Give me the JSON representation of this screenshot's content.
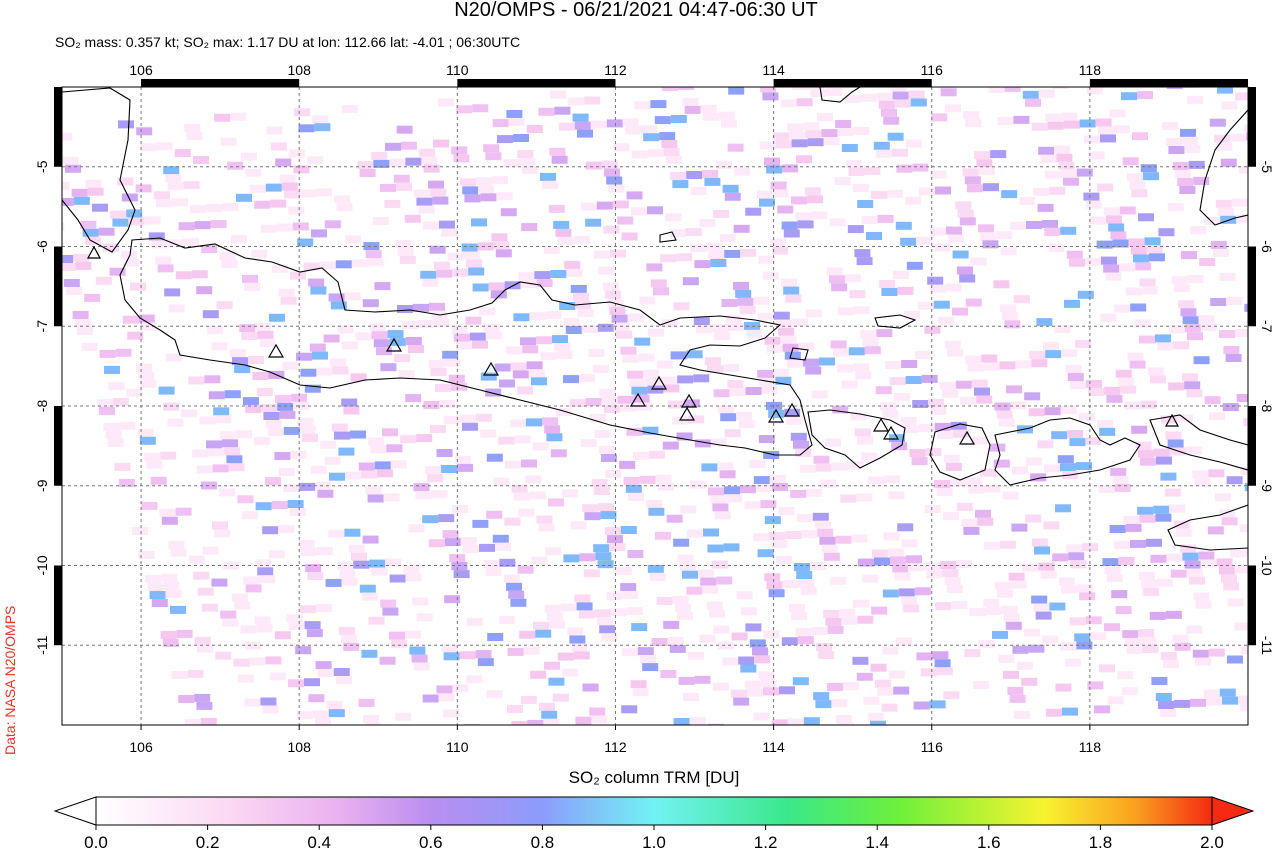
{
  "header": {
    "title": "N20/OMPS - 06/21/2021 04:47-06:30 UT",
    "subtitle": "SO₂ mass: 0.357 kt; SO₂ max: 1.17 DU at lon: 112.66 lat: -4.01 ; 06:30UTC"
  },
  "map": {
    "xlim": [
      105,
      120
    ],
    "ylim": [
      -12,
      -4
    ],
    "xticks": [
      106,
      108,
      110,
      112,
      114,
      116,
      118
    ],
    "yticks": [
      -5,
      -6,
      -7,
      -8,
      -9,
      -10,
      -11
    ],
    "grid": true
  },
  "colorbar": {
    "label": "SO₂ column TRM [DU]",
    "lim": [
      0,
      2
    ],
    "ticks": [
      {
        "value": 0,
        "label": "0.0"
      },
      {
        "value": 0.2,
        "label": "0.2"
      },
      {
        "value": 0.4,
        "label": "0.4"
      },
      {
        "value": 0.6,
        "label": "0.6"
      },
      {
        "value": 0.8,
        "label": "0.8"
      },
      {
        "value": 1,
        "label": "1.0"
      },
      {
        "value": 1.2,
        "label": "1.2"
      },
      {
        "value": 1.4,
        "label": "1.4"
      },
      {
        "value": 1.6,
        "label": "1.6"
      },
      {
        "value": 1.8,
        "label": "1.8"
      },
      {
        "value": 2,
        "label": "2.0"
      }
    ]
  },
  "credit": "Data: NASA N20/OMPS"
}
